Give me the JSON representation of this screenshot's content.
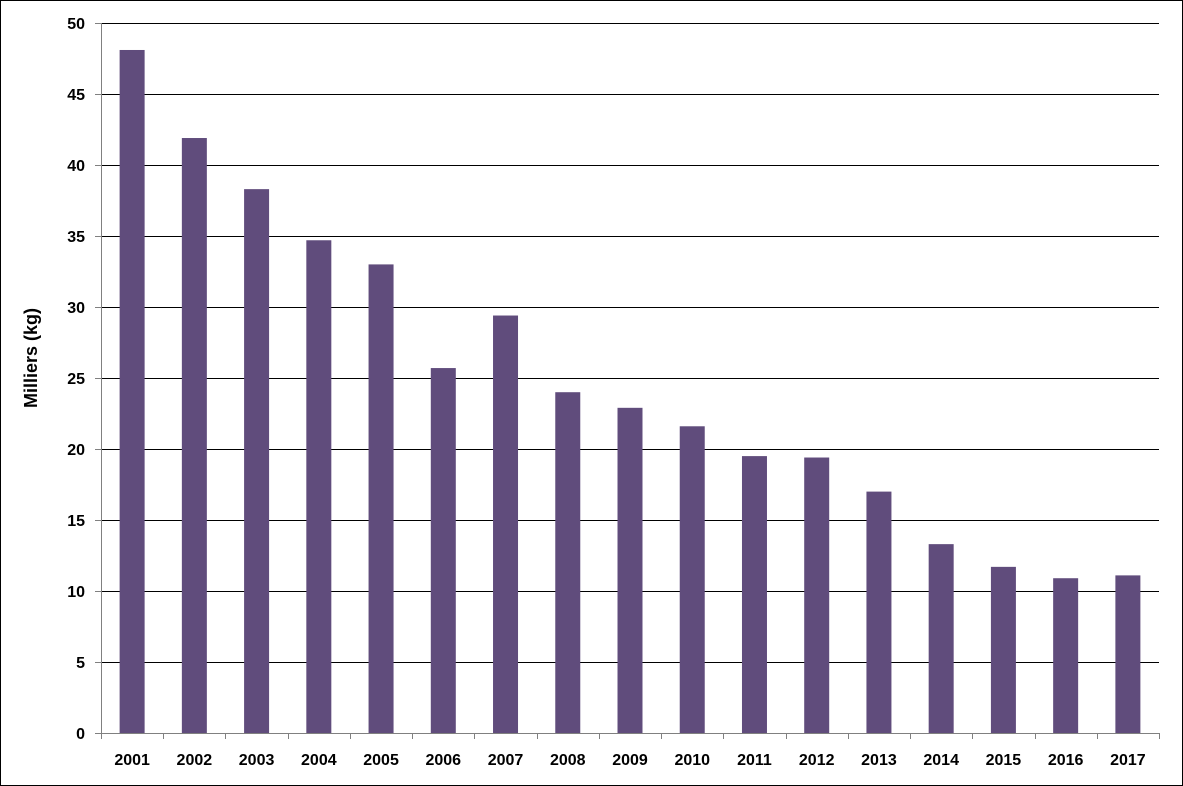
{
  "chart_data": {
    "type": "bar",
    "title": "",
    "xlabel": "",
    "ylabel": "Milliers (kg)",
    "categories": [
      "2001",
      "2002",
      "2003",
      "2004",
      "2005",
      "2006",
      "2007",
      "2008",
      "2009",
      "2010",
      "2011",
      "2012",
      "2013",
      "2014",
      "2015",
      "2016",
      "2017"
    ],
    "series": [
      {
        "values": [
          48.1,
          41.9,
          38.3,
          34.7,
          33.0,
          25.7,
          29.4,
          24.0,
          22.9,
          21.6,
          19.5,
          19.4,
          17.0,
          13.3,
          11.7,
          10.9,
          11.1
        ]
      }
    ],
    "ylim": [
      0,
      50
    ],
    "yticks": [
      0,
      5,
      10,
      15,
      20,
      25,
      30,
      35,
      40,
      45,
      50
    ],
    "grid": true,
    "legend": "none",
    "colors": {
      "bar": "#604C7C",
      "grid": "#000000",
      "axis": "#808080"
    }
  }
}
